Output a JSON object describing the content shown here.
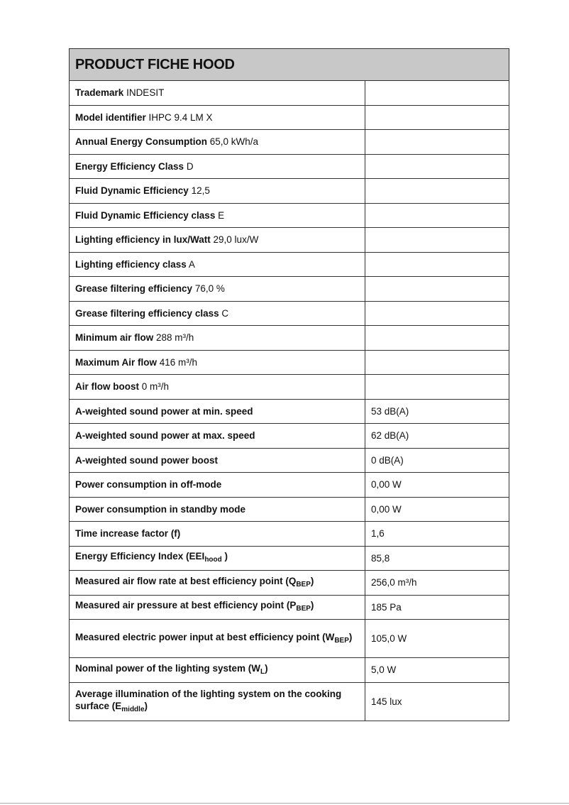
{
  "title": "PRODUCT FICHE HOOD",
  "rows": [
    {
      "label": "Trademark",
      "inline": "INDESIT",
      "value": ""
    },
    {
      "label": "Model identifier",
      "inline": "IHPC 9.4 LM X",
      "value": ""
    },
    {
      "label": "Annual Energy Consumption",
      "inline": "65,0 kWh/a",
      "value": ""
    },
    {
      "label": "Energy Efficiency Class",
      "inline": "D",
      "value": ""
    },
    {
      "label": "Fluid Dynamic Efficiency",
      "inline": "12,5",
      "value": ""
    },
    {
      "label": "Fluid Dynamic Efficiency class",
      "inline": "E",
      "value": ""
    },
    {
      "label": "Lighting efficiency in lux/Watt",
      "inline": "29,0 lux/W",
      "value": ""
    },
    {
      "label": "Lighting efficiency class",
      "inline": "A",
      "value": ""
    },
    {
      "label": "Grease filtering efficiency",
      "inline": "76,0 %",
      "value": ""
    },
    {
      "label": "Grease filtering efficiency class",
      "inline": "C",
      "value": ""
    },
    {
      "label": "Minimum air flow",
      "inline": "288 m³/h",
      "value": ""
    },
    {
      "label": "Maximum Air flow",
      "inline": "416 m³/h",
      "value": ""
    },
    {
      "label": "Air flow boost",
      "inline": "0 m³/h",
      "value": ""
    },
    {
      "label": "A-weighted sound power at min. speed",
      "value": "53 dB(A)"
    },
    {
      "label": "A-weighted sound power at max. speed",
      "value": "62 dB(A)"
    },
    {
      "label": "A-weighted sound power boost",
      "value": "0 dB(A)"
    },
    {
      "label": "Power consumption in off-mode",
      "value": "0,00 W"
    },
    {
      "label": "Power consumption in standby mode",
      "value": "0,00 W"
    },
    {
      "label": "Time increase factor (f)",
      "value": "1,6"
    },
    {
      "label": "Energy Efficiency Index (EEI",
      "sub": "hood",
      "end": " )",
      "value": "85,8"
    },
    {
      "label": "Measured air flow rate at best efficiency point (Q",
      "sub": "BEP",
      "end": ")",
      "value": "256,0 m³/h"
    },
    {
      "label": "Measured air pressure at best efficiency point (P",
      "sub": "BEP",
      "end": ")",
      "value": "185 Pa"
    },
    {
      "label": "Measured electric power input at best efficiency point (W",
      "sub": "BEP",
      "end": ")",
      "value": "105,0 W",
      "tall": true
    },
    {
      "label": "Nominal power of the lighting system (W",
      "sub": "L",
      "end": ")",
      "value": "5,0 W"
    },
    {
      "label": "Average illumination of the lighting system on the cooking surface (E",
      "sub": "middle",
      "end": ")",
      "value": "145 lux",
      "tall": true
    }
  ]
}
